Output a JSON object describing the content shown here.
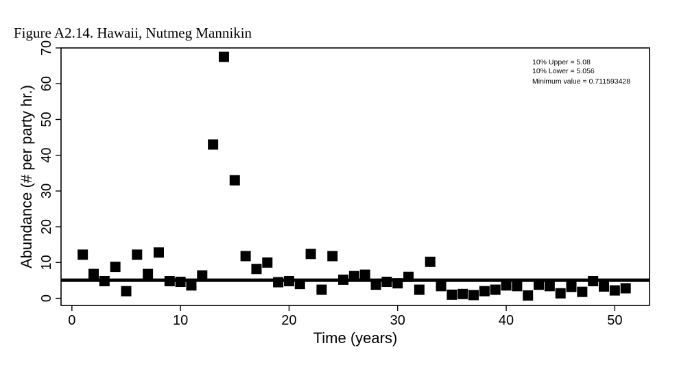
{
  "figure_title": "Figure A2.14. Hawaii, Nutmeg Mannikin",
  "annotations": {
    "upper": "10% Upper =  5.08",
    "lower": "10% Lower =  5.056",
    "minimum": "Minimum value =  0.711593428"
  },
  "chart_data": {
    "type": "scatter",
    "title": "Figure A2.14. Hawaii, Nutmeg Mannikin",
    "xlabel": "Time (years)",
    "ylabel": "Abundance (# per party hr.)",
    "xlim": [
      -1,
      53.2
    ],
    "ylim": [
      -2,
      70
    ],
    "xticks": [
      0,
      10,
      20,
      30,
      40,
      50
    ],
    "yticks": [
      0,
      10,
      20,
      30,
      40,
      50,
      60,
      70
    ],
    "grid": false,
    "reference_line": {
      "y": 5.07
    },
    "series": [
      {
        "x": [
          1,
          2,
          3,
          4,
          5,
          6,
          7,
          8,
          9,
          10,
          11,
          12,
          13,
          14,
          15,
          16,
          17,
          18,
          19,
          20,
          21,
          22,
          23,
          24,
          25,
          26,
          27,
          28,
          29,
          30,
          31,
          32,
          33,
          34,
          35,
          36,
          37,
          38,
          39,
          40,
          41,
          42,
          43,
          44,
          45,
          46,
          47,
          48,
          49,
          50,
          51
        ],
        "y": [
          12.2,
          6.8,
          4.8,
          8.8,
          2.0,
          12.2,
          6.8,
          12.8,
          4.8,
          4.6,
          3.6,
          6.4,
          43.0,
          67.5,
          33.0,
          11.8,
          8.2,
          10.0,
          4.5,
          4.8,
          4.0,
          12.4,
          2.4,
          11.8,
          5.2,
          6.2,
          6.6,
          3.8,
          4.6,
          4.2,
          6.0,
          2.4,
          10.2,
          3.4,
          1.0,
          1.2,
          0.9,
          2.0,
          2.4,
          3.6,
          3.4,
          0.8,
          3.8,
          3.4,
          1.4,
          3.2,
          1.8,
          4.8,
          3.3,
          2.2,
          2.8
        ]
      }
    ]
  }
}
